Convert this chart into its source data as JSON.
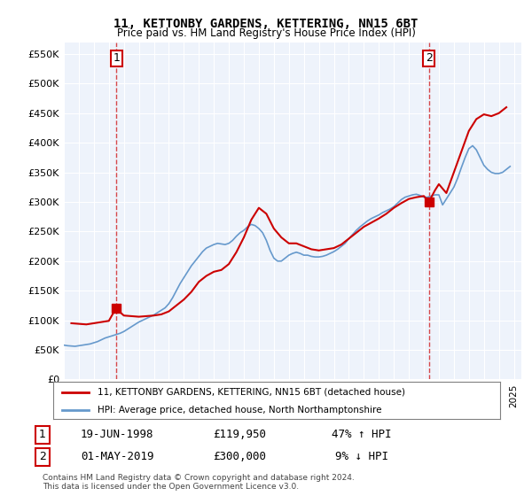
{
  "title": "11, KETTONBY GARDENS, KETTERING, NN15 6BT",
  "subtitle": "Price paid vs. HM Land Registry's House Price Index (HPI)",
  "ylabel_ticks": [
    "£0",
    "£50K",
    "£100K",
    "£150K",
    "£200K",
    "£250K",
    "£300K",
    "£350K",
    "£400K",
    "£450K",
    "£500K",
    "£550K"
  ],
  "ytick_values": [
    0,
    50000,
    100000,
    150000,
    200000,
    250000,
    300000,
    350000,
    400000,
    450000,
    500000,
    550000
  ],
  "ylim": [
    0,
    570000
  ],
  "x_start_year": 1995,
  "x_end_year": 2025,
  "background_color": "#ffffff",
  "plot_bg_color": "#eef3fb",
  "grid_color": "#ffffff",
  "red_line_color": "#cc0000",
  "blue_line_color": "#6699cc",
  "sale1_date": "1998-06-19",
  "sale1_value": 119950,
  "sale1_label": "1",
  "sale2_date": "2019-05-01",
  "sale2_value": 300000,
  "sale2_label": "2",
  "legend_entry1": "11, KETTONBY GARDENS, KETTERING, NN15 6BT (detached house)",
  "legend_entry2": "HPI: Average price, detached house, North Northamptonshire",
  "annotation1_date": "19-JUN-1998",
  "annotation1_price": "£119,950",
  "annotation1_hpi": "47% ↑ HPI",
  "annotation2_date": "01-MAY-2019",
  "annotation2_price": "£300,000",
  "annotation2_hpi": "9% ↓ HPI",
  "footer": "Contains HM Land Registry data © Crown copyright and database right 2024.\nThis data is licensed under the Open Government Licence v3.0.",
  "hpi_data": {
    "dates": [
      1995.0,
      1995.25,
      1995.5,
      1995.75,
      1996.0,
      1996.25,
      1996.5,
      1996.75,
      1997.0,
      1997.25,
      1997.5,
      1997.75,
      1998.0,
      1998.25,
      1998.5,
      1998.75,
      1999.0,
      1999.25,
      1999.5,
      1999.75,
      2000.0,
      2000.25,
      2000.5,
      2000.75,
      2001.0,
      2001.25,
      2001.5,
      2001.75,
      2002.0,
      2002.25,
      2002.5,
      2002.75,
      2003.0,
      2003.25,
      2003.5,
      2003.75,
      2004.0,
      2004.25,
      2004.5,
      2004.75,
      2005.0,
      2005.25,
      2005.5,
      2005.75,
      2006.0,
      2006.25,
      2006.5,
      2006.75,
      2007.0,
      2007.25,
      2007.5,
      2007.75,
      2008.0,
      2008.25,
      2008.5,
      2008.75,
      2009.0,
      2009.25,
      2009.5,
      2009.75,
      2010.0,
      2010.25,
      2010.5,
      2010.75,
      2011.0,
      2011.25,
      2011.5,
      2011.75,
      2012.0,
      2012.25,
      2012.5,
      2012.75,
      2013.0,
      2013.25,
      2013.5,
      2013.75,
      2014.0,
      2014.25,
      2014.5,
      2014.75,
      2015.0,
      2015.25,
      2015.5,
      2015.75,
      2016.0,
      2016.25,
      2016.5,
      2016.75,
      2017.0,
      2017.25,
      2017.5,
      2017.75,
      2018.0,
      2018.25,
      2018.5,
      2018.75,
      2019.0,
      2019.25,
      2019.5,
      2019.75,
      2020.0,
      2020.25,
      2020.5,
      2020.75,
      2021.0,
      2021.25,
      2021.5,
      2021.75,
      2022.0,
      2022.25,
      2022.5,
      2022.75,
      2023.0,
      2023.25,
      2023.5,
      2023.75,
      2024.0,
      2024.25,
      2024.5,
      2024.75
    ],
    "values": [
      58000,
      57000,
      56500,
      56000,
      57000,
      58000,
      59000,
      60000,
      62000,
      64000,
      67000,
      70000,
      72000,
      74000,
      76000,
      78000,
      81000,
      85000,
      89000,
      93000,
      97000,
      100000,
      103000,
      106000,
      109000,
      113000,
      117000,
      121000,
      128000,
      138000,
      150000,
      162000,
      172000,
      182000,
      192000,
      200000,
      208000,
      216000,
      222000,
      225000,
      228000,
      230000,
      229000,
      228000,
      230000,
      235000,
      242000,
      248000,
      252000,
      258000,
      262000,
      260000,
      255000,
      248000,
      235000,
      218000,
      205000,
      200000,
      200000,
      205000,
      210000,
      213000,
      215000,
      213000,
      210000,
      210000,
      208000,
      207000,
      207000,
      208000,
      210000,
      213000,
      216000,
      220000,
      225000,
      230000,
      238000,
      245000,
      252000,
      258000,
      263000,
      268000,
      272000,
      275000,
      278000,
      282000,
      285000,
      288000,
      292000,
      298000,
      304000,
      308000,
      310000,
      312000,
      313000,
      311000,
      308000,
      308000,
      310000,
      312000,
      312000,
      295000,
      305000,
      315000,
      325000,
      340000,
      358000,
      375000,
      390000,
      395000,
      388000,
      375000,
      362000,
      355000,
      350000,
      348000,
      348000,
      350000,
      355000,
      360000
    ]
  },
  "red_line_data": {
    "dates": [
      1995.5,
      1996.0,
      1996.5,
      1997.0,
      1997.5,
      1998.0,
      1998.47,
      1999.0,
      1999.5,
      2000.0,
      2000.5,
      2001.0,
      2001.5,
      2002.0,
      2002.5,
      2003.0,
      2003.5,
      2004.0,
      2004.5,
      2005.0,
      2005.5,
      2006.0,
      2006.5,
      2007.0,
      2007.5,
      2008.0,
      2008.5,
      2009.0,
      2009.5,
      2010.0,
      2010.5,
      2011.0,
      2011.5,
      2012.0,
      2012.5,
      2013.0,
      2013.5,
      2014.0,
      2014.5,
      2015.0,
      2015.5,
      2016.0,
      2016.5,
      2017.0,
      2017.5,
      2018.0,
      2018.5,
      2019.0,
      2019.33,
      2019.75,
      2020.0,
      2020.5,
      2021.0,
      2021.5,
      2022.0,
      2022.5,
      2023.0,
      2023.5,
      2024.0,
      2024.5
    ],
    "values": [
      95000,
      94000,
      93000,
      95000,
      97000,
      99000,
      119950,
      108000,
      107000,
      106000,
      107000,
      108000,
      110000,
      115000,
      125000,
      135000,
      148000,
      165000,
      175000,
      182000,
      185000,
      195000,
      215000,
      240000,
      270000,
      290000,
      280000,
      255000,
      240000,
      230000,
      230000,
      225000,
      220000,
      218000,
      220000,
      222000,
      228000,
      238000,
      248000,
      258000,
      265000,
      272000,
      280000,
      290000,
      298000,
      305000,
      308000,
      310000,
      300000,
      320000,
      330000,
      315000,
      350000,
      385000,
      420000,
      440000,
      448000,
      445000,
      450000,
      460000
    ]
  }
}
